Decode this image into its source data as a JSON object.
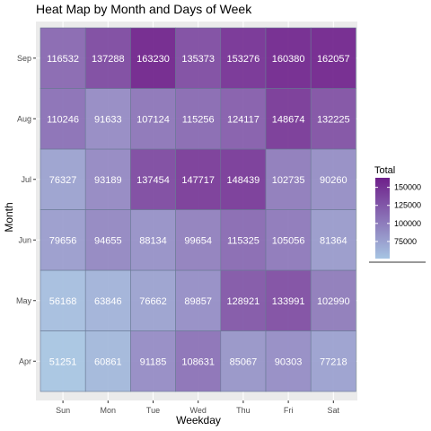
{
  "chart_data": {
    "type": "heatmap",
    "title": "Heat Map by Month and Days of Week",
    "xlabel": "Weekday",
    "ylabel": "Month",
    "x_categories": [
      "Sun",
      "Mon",
      "Tue",
      "Wed",
      "Thu",
      "Fri",
      "Sat"
    ],
    "y_categories": [
      "Apr",
      "May",
      "Jun",
      "Jul",
      "Aug",
      "Sep"
    ],
    "values": [
      [
        51251,
        60861,
        91185,
        108631,
        85067,
        90303,
        77218
      ],
      [
        56168,
        63846,
        76662,
        89857,
        128921,
        133991,
        102990
      ],
      [
        79656,
        94655,
        88134,
        99654,
        115325,
        105056,
        81364
      ],
      [
        76327,
        93189,
        137454,
        147717,
        148439,
        102735,
        90260
      ],
      [
        110246,
        91633,
        107124,
        115256,
        124117,
        148674,
        132225
      ],
      [
        116532,
        137288,
        163230,
        135373,
        153276,
        160380,
        162057
      ]
    ],
    "legend": {
      "title": "Total",
      "ticks": [
        75000,
        100000,
        125000,
        150000
      ],
      "tick_labels": [
        "75000",
        "100000",
        "125000",
        "150000"
      ],
      "placement": "right"
    },
    "color_low": "#a6c4e2",
    "color_high": "#6e1f8a",
    "panel_background": "#ebebeb",
    "grid": true
  }
}
